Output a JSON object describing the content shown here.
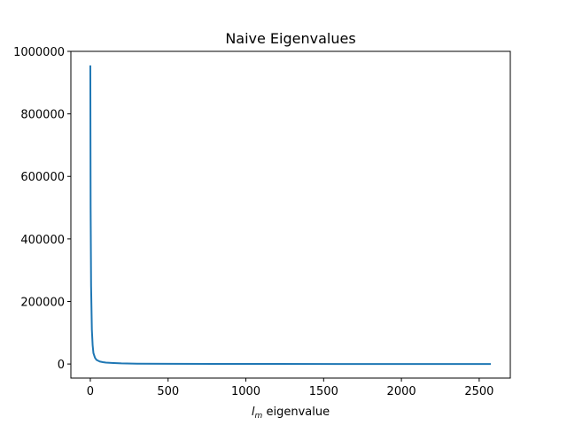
{
  "chart_data": {
    "type": "line",
    "title": "Naive Eigenvalues",
    "xlabel": {
      "symbol": "l",
      "subscript": "m",
      "text": "eigenvalue"
    },
    "ylabel": "",
    "xlim": [
      -125,
      2700
    ],
    "ylim": [
      -45000,
      1000000
    ],
    "xticks": [
      0,
      500,
      1000,
      1500,
      2000,
      2500
    ],
    "xtick_labels": [
      "0",
      "500",
      "1000",
      "1500",
      "2000",
      "2500"
    ],
    "yticks": [
      0,
      200000,
      400000,
      600000,
      800000,
      1000000
    ],
    "ytick_labels": [
      "0",
      "200000",
      "400000",
      "600000",
      "800000",
      "1000000"
    ],
    "grid": false,
    "series": [
      {
        "color": "#1f77b4",
        "x": [
          0,
          2,
          5,
          10,
          15,
          20,
          30,
          40,
          60,
          80,
          100,
          150,
          200,
          300,
          500,
          800,
          1200,
          1600,
          2000,
          2400,
          2575
        ],
        "y": [
          955000,
          500000,
          250000,
          110000,
          60000,
          35000,
          20000,
          13000,
          8000,
          6000,
          4500,
          3000,
          2000,
          1200,
          600,
          300,
          150,
          80,
          40,
          20,
          10
        ]
      }
    ]
  }
}
